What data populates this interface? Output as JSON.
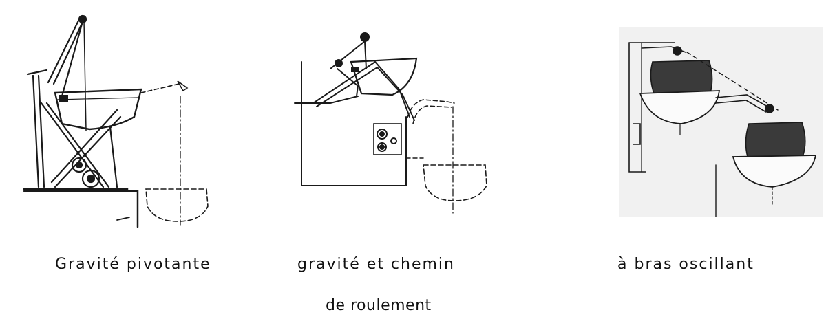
{
  "figures": [
    {
      "caption": "Gravité pivotante",
      "illustration": "pivoting-gravity-davit"
    },
    {
      "caption_line1": "gravité et chemin",
      "caption_line2": "de roulement",
      "illustration": "gravity-track-davit"
    },
    {
      "caption": "à bras oscillant",
      "illustration": "swinging-arm-davit"
    }
  ],
  "colors": {
    "ink": "#1a1a1a",
    "photo_bg": "#f1f1f1",
    "boat_dark": "#3a3a3a"
  }
}
